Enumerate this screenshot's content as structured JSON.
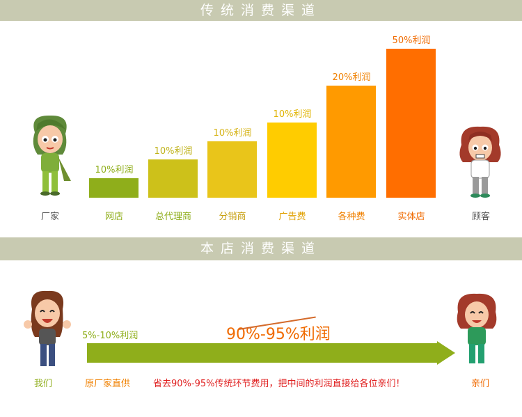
{
  "sections": {
    "traditional_title": "传统消费渠道",
    "store_title": "本店消费渠道"
  },
  "chart_data": {
    "type": "bar",
    "categories": [
      "网店",
      "总代理商",
      "分销商",
      "广告费",
      "各种费",
      "实体店"
    ],
    "value_labels": [
      "10%利润",
      "10%利润",
      "10%利润",
      "10%利润",
      "20%利润",
      "50%利润"
    ],
    "heights": [
      1,
      2,
      3,
      4,
      6,
      8
    ],
    "colors": [
      "#8fae1b",
      "#cdc11a",
      "#e9c51a",
      "#ffcc00",
      "#ff9a00",
      "#ff6e00"
    ],
    "label_colors": [
      "#8fae1b",
      "#bfb218",
      "#d6b315",
      "#e0b400",
      "#f08000",
      "#f06a00"
    ],
    "category_colors": [
      "#8fae1b",
      "#8fae1b",
      "#c8a012",
      "#e0a000",
      "#f08000",
      "#f06a00"
    ]
  },
  "traditional": {
    "left_person": "厂家",
    "right_person": "顾客"
  },
  "store": {
    "left_person": "我们",
    "right_person": "亲们",
    "start_profit": "5%-10%利润",
    "big_profit": "90%-95%利润",
    "source_label": "原厂家直供",
    "message": "省去90%-95%传统环节费用，把中间的利润直接给各位亲们！"
  }
}
